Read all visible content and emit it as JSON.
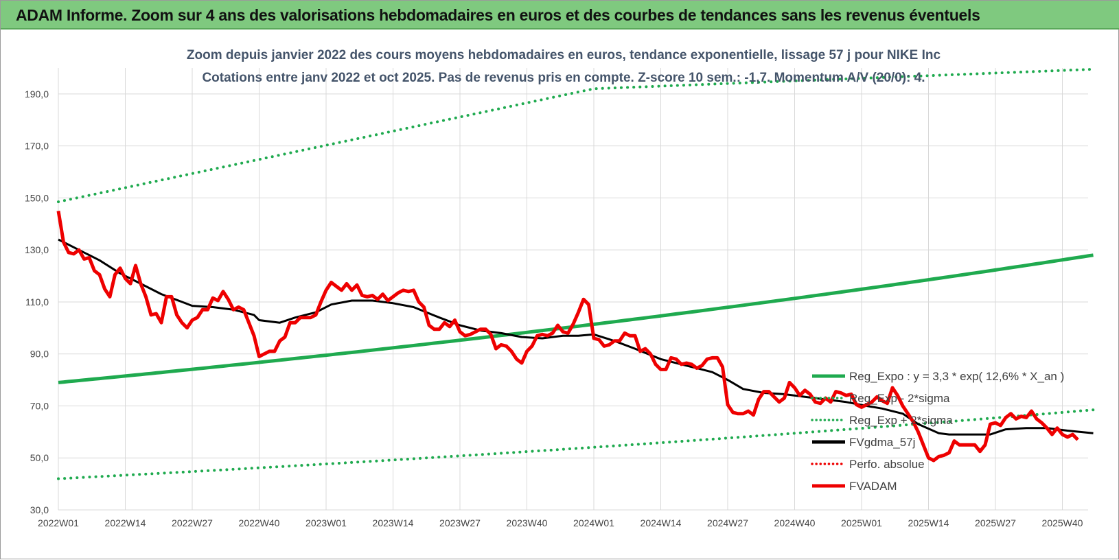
{
  "header": {
    "banner": "ADAM Informe. Zoom sur 4 ans des valorisations hebdomadaires en euros et des courbes de tendances sans les revenus éventuels"
  },
  "colors": {
    "banner_bg": "#7fc97f",
    "trend_green": "#1faa4f",
    "price_red": "#ee0000",
    "smooth_black": "#000000",
    "grid": "#d9d9d9"
  },
  "chart_data": {
    "type": "line",
    "title": "Zoom depuis janvier 2022 des cours moyens hebdomadaires en euros, tendance exponentielle, lissage 57 j pour NIKE Inc",
    "subtitle": "Cotations entre janv 2022 et oct 2025. Pas de revenus pris en compte. Z-score 10 sem.: -1,7. Momentum A/V (20/0): 4.",
    "ylim": [
      30,
      200
    ],
    "y_ticks": [
      "30,0",
      "50,0",
      "70,0",
      "90,0",
      "110,0",
      "130,0",
      "150,0",
      "170,0",
      "190,0"
    ],
    "x_ticks": [
      "2022W01",
      "2022W14",
      "2022W27",
      "2022W40",
      "2023W01",
      "2023W14",
      "2023W27",
      "2023W40",
      "2024W01",
      "2024W14",
      "2024W27",
      "2024W40",
      "2025W01",
      "2025W14",
      "2025W27",
      "2025W40"
    ],
    "x_tick_weeks": [
      0,
      13,
      26,
      39,
      52,
      65,
      78,
      91,
      104,
      117,
      130,
      143,
      156,
      169,
      182,
      195
    ],
    "n_weeks": 201,
    "grid": true,
    "legend_position": "bottom-right",
    "legend": [
      {
        "name": "Reg_Expo : y = 3,3 * exp( 12,6% * X_an )",
        "style": "solid",
        "color": "#1faa4f"
      },
      {
        "name": "Reg_Exp - 2*sigma",
        "style": "dotted",
        "color": "#1faa4f"
      },
      {
        "name": "Reg_Exp + 2*sigma",
        "style": "dotted",
        "color": "#1faa4f"
      },
      {
        "name": "FVgdma_57j",
        "style": "solid",
        "color": "#000000"
      },
      {
        "name": "Perfo. absolue",
        "style": "dotted",
        "color": "#ee0000"
      },
      {
        "name": "FVADAM",
        "style": "solid",
        "color": "#ee0000"
      }
    ],
    "series": [
      {
        "name": "Reg_Expo : y = 3,3 * exp( 12,6% * X_an )",
        "points": [
          [
            0,
            79
          ],
          [
            201,
            128
          ]
        ]
      },
      {
        "name": "Reg_Exp - 2*sigma",
        "points": [
          [
            0,
            42
          ],
          [
            201,
            68.5
          ]
        ]
      },
      {
        "name": "Reg_Exp + 2*sigma",
        "points": [
          [
            0,
            148.5
          ],
          [
            104,
            192
          ],
          [
            201,
            199.5
          ]
        ]
      },
      {
        "name": "FVgdma_57j",
        "points": [
          [
            0,
            134
          ],
          [
            4,
            130
          ],
          [
            8,
            126
          ],
          [
            12,
            121
          ],
          [
            16,
            117
          ],
          [
            20,
            113
          ],
          [
            24,
            110
          ],
          [
            26,
            108.5
          ],
          [
            30,
            108
          ],
          [
            34,
            107
          ],
          [
            38,
            105
          ],
          [
            39,
            103
          ],
          [
            43,
            102
          ],
          [
            46,
            104
          ],
          [
            50,
            106
          ],
          [
            53,
            109
          ],
          [
            57,
            110.5
          ],
          [
            61,
            110.5
          ],
          [
            65,
            109.5
          ],
          [
            69,
            108
          ],
          [
            74,
            104
          ],
          [
            78,
            101
          ],
          [
            82,
            99
          ],
          [
            86,
            98
          ],
          [
            90,
            96.5
          ],
          [
            94,
            96
          ],
          [
            98,
            97
          ],
          [
            101,
            97
          ],
          [
            104,
            97.5
          ],
          [
            108,
            95
          ],
          [
            112,
            92
          ],
          [
            117,
            88
          ],
          [
            121,
            86
          ],
          [
            124,
            84.5
          ],
          [
            127,
            83
          ],
          [
            130,
            80
          ],
          [
            133,
            76.5
          ],
          [
            137,
            75
          ],
          [
            141,
            74.5
          ],
          [
            145,
            73.5
          ],
          [
            149,
            72.5
          ],
          [
            153,
            71.5
          ],
          [
            157,
            70
          ],
          [
            160,
            69
          ],
          [
            164,
            67
          ],
          [
            167,
            63
          ],
          [
            171,
            59.5
          ],
          [
            173,
            59
          ],
          [
            181,
            59
          ],
          [
            184,
            61
          ],
          [
            188,
            61.5
          ],
          [
            192,
            61.5
          ],
          [
            196,
            60.5
          ],
          [
            201,
            59.5
          ]
        ]
      },
      {
        "name": "FVADAM",
        "points": [
          [
            0,
            145
          ],
          [
            1,
            133
          ],
          [
            2,
            129
          ],
          [
            3,
            128.5
          ],
          [
            4,
            130
          ],
          [
            5,
            126.5
          ],
          [
            6,
            127
          ],
          [
            7,
            122
          ],
          [
            8,
            120.5
          ],
          [
            9,
            115
          ],
          [
            10,
            112
          ],
          [
            11,
            120.5
          ],
          [
            12,
            123
          ],
          [
            13,
            119
          ],
          [
            14,
            117
          ],
          [
            15,
            124
          ],
          [
            16,
            117
          ],
          [
            17,
            112
          ],
          [
            18,
            105
          ],
          [
            19,
            105.5
          ],
          [
            20,
            102
          ],
          [
            21,
            112
          ],
          [
            22,
            112
          ],
          [
            23,
            105
          ],
          [
            24,
            102
          ],
          [
            25,
            100
          ],
          [
            26,
            103
          ],
          [
            27,
            104
          ],
          [
            28,
            107
          ],
          [
            29,
            107
          ],
          [
            30,
            111.5
          ],
          [
            31,
            110.5
          ],
          [
            32,
            114
          ],
          [
            33,
            111
          ],
          [
            34,
            107
          ],
          [
            35,
            108
          ],
          [
            36,
            107
          ],
          [
            37,
            102
          ],
          [
            38,
            97
          ],
          [
            39,
            89
          ],
          [
            40,
            90
          ],
          [
            41,
            91
          ],
          [
            42,
            91
          ],
          [
            43,
            95
          ],
          [
            44,
            96.5
          ],
          [
            45,
            102
          ],
          [
            46,
            102
          ],
          [
            47,
            104
          ],
          [
            48,
            104
          ],
          [
            49,
            104
          ],
          [
            50,
            105
          ],
          [
            51,
            110
          ],
          [
            52,
            114.5
          ],
          [
            53,
            117.5
          ],
          [
            54,
            116
          ],
          [
            55,
            114.5
          ],
          [
            56,
            117
          ],
          [
            57,
            114.5
          ],
          [
            58,
            116.5
          ],
          [
            59,
            112.5
          ],
          [
            60,
            112
          ],
          [
            61,
            112.5
          ],
          [
            62,
            111
          ],
          [
            63,
            113
          ],
          [
            64,
            110.5
          ],
          [
            65,
            112
          ],
          [
            66,
            113.5
          ],
          [
            67,
            114.5
          ],
          [
            68,
            114
          ],
          [
            69,
            114.5
          ],
          [
            70,
            110
          ],
          [
            71,
            108
          ],
          [
            72,
            101
          ],
          [
            73,
            99.5
          ],
          [
            74,
            99.5
          ],
          [
            75,
            102
          ],
          [
            76,
            100.5
          ],
          [
            77,
            103
          ],
          [
            78,
            98.5
          ],
          [
            79,
            97
          ],
          [
            80,
            97.5
          ],
          [
            81,
            98.5
          ],
          [
            82,
            99.5
          ],
          [
            83,
            99.5
          ],
          [
            84,
            97.5
          ],
          [
            85,
            92
          ],
          [
            86,
            93.5
          ],
          [
            87,
            93
          ],
          [
            88,
            91
          ],
          [
            89,
            88
          ],
          [
            90,
            86.5
          ],
          [
            91,
            91
          ],
          [
            92,
            93
          ],
          [
            93,
            97
          ],
          [
            94,
            97.5
          ],
          [
            95,
            97
          ],
          [
            96,
            98
          ],
          [
            97,
            101
          ],
          [
            98,
            98.5
          ],
          [
            99,
            98
          ],
          [
            100,
            101.5
          ],
          [
            101,
            106
          ],
          [
            102,
            111
          ],
          [
            103,
            109
          ],
          [
            104,
            96
          ],
          [
            105,
            95.5
          ],
          [
            106,
            93
          ],
          [
            107,
            93.5
          ],
          [
            108,
            95
          ],
          [
            109,
            95
          ],
          [
            110,
            98
          ],
          [
            111,
            97
          ],
          [
            112,
            97
          ],
          [
            113,
            91
          ],
          [
            114,
            92
          ],
          [
            115,
            90
          ],
          [
            116,
            86
          ],
          [
            117,
            84
          ],
          [
            118,
            84
          ],
          [
            119,
            88.5
          ],
          [
            120,
            88
          ],
          [
            121,
            86
          ],
          [
            122,
            86.5
          ],
          [
            123,
            86
          ],
          [
            124,
            84.5
          ],
          [
            125,
            85.5
          ],
          [
            126,
            88
          ],
          [
            127,
            88.5
          ],
          [
            128,
            88.5
          ],
          [
            129,
            85
          ],
          [
            130,
            70.5
          ],
          [
            131,
            67.5
          ],
          [
            132,
            67
          ],
          [
            133,
            67
          ],
          [
            134,
            68
          ],
          [
            135,
            66.5
          ],
          [
            136,
            72.5
          ],
          [
            137,
            75.5
          ],
          [
            138,
            75.5
          ],
          [
            139,
            73.5
          ],
          [
            140,
            71.5
          ],
          [
            141,
            73
          ],
          [
            142,
            79
          ],
          [
            143,
            77
          ],
          [
            144,
            74
          ],
          [
            145,
            76
          ],
          [
            146,
            74.5
          ],
          [
            147,
            71.5
          ],
          [
            148,
            71
          ],
          [
            149,
            73
          ],
          [
            150,
            71.5
          ],
          [
            151,
            75.5
          ],
          [
            152,
            75
          ],
          [
            153,
            74
          ],
          [
            154,
            74.5
          ],
          [
            155,
            70.5
          ],
          [
            156,
            69.5
          ],
          [
            157,
            70.5
          ],
          [
            158,
            71.5
          ],
          [
            159,
            73.5
          ],
          [
            160,
            72
          ],
          [
            161,
            71
          ],
          [
            162,
            77
          ],
          [
            163,
            74
          ],
          [
            164,
            70
          ],
          [
            165,
            67
          ],
          [
            166,
            64
          ],
          [
            167,
            60
          ],
          [
            168,
            55
          ],
          [
            169,
            50
          ],
          [
            170,
            49
          ],
          [
            171,
            50.5
          ],
          [
            172,
            51
          ],
          [
            173,
            52
          ],
          [
            174,
            56.5
          ],
          [
            175,
            55
          ],
          [
            176,
            55
          ],
          [
            177,
            55
          ],
          [
            178,
            55
          ],
          [
            179,
            52.5
          ],
          [
            180,
            55
          ],
          [
            181,
            63
          ],
          [
            182,
            63.5
          ],
          [
            183,
            62.5
          ],
          [
            184,
            65.5
          ],
          [
            185,
            67
          ],
          [
            186,
            65
          ],
          [
            187,
            66
          ],
          [
            188,
            65.5
          ],
          [
            189,
            68
          ],
          [
            190,
            65
          ],
          [
            191,
            63.5
          ],
          [
            192,
            61.5
          ],
          [
            193,
            59
          ],
          [
            194,
            61.5
          ],
          [
            195,
            59
          ],
          [
            196,
            58
          ],
          [
            197,
            59
          ],
          [
            198,
            57
          ]
        ]
      }
    ]
  }
}
